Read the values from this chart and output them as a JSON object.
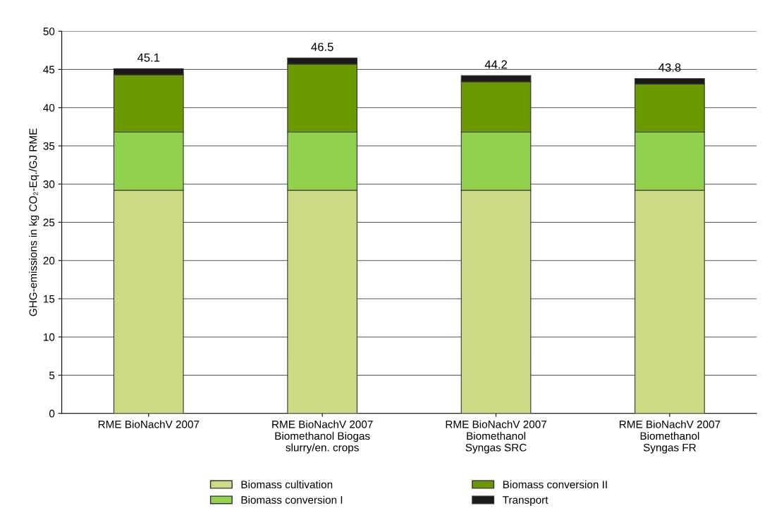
{
  "chart_data": {
    "type": "bar",
    "stacked": true,
    "ylabel": "GHG-emissions in kg CO₂-Eq./GJ RME",
    "categories": [
      "RME BioNachV 2007",
      "RME BioNachV 2007\nBiomethanol Biogas\nslurry/en. crops",
      "RME BioNachV 2007\nBiomethanol\nSyngas SRC",
      "RME BioNachV 2007\nBiomethanol\nSyngas FR"
    ],
    "series": [
      {
        "name": "Biomass cultivation",
        "color": "#cddc84",
        "values": [
          29.2,
          29.2,
          29.2,
          29.2
        ]
      },
      {
        "name": "Biomass conversion I",
        "color": "#92d050",
        "values": [
          7.6,
          7.6,
          7.6,
          7.6
        ]
      },
      {
        "name": "Biomass conversion II",
        "color": "#6a9a00",
        "values": [
          7.5,
          8.9,
          6.6,
          6.3
        ]
      },
      {
        "name": "Transport",
        "color": "#1a1a1a",
        "values": [
          0.8,
          0.8,
          0.8,
          0.7
        ]
      }
    ],
    "totals": [
      "45.1",
      "46.5",
      "44.2",
      "43.8"
    ],
    "ylim": [
      0,
      50
    ],
    "yticks": [
      0,
      5,
      10,
      15,
      20,
      25,
      30,
      35,
      40,
      45,
      50
    ],
    "grid": "y",
    "legend": "bottom"
  }
}
